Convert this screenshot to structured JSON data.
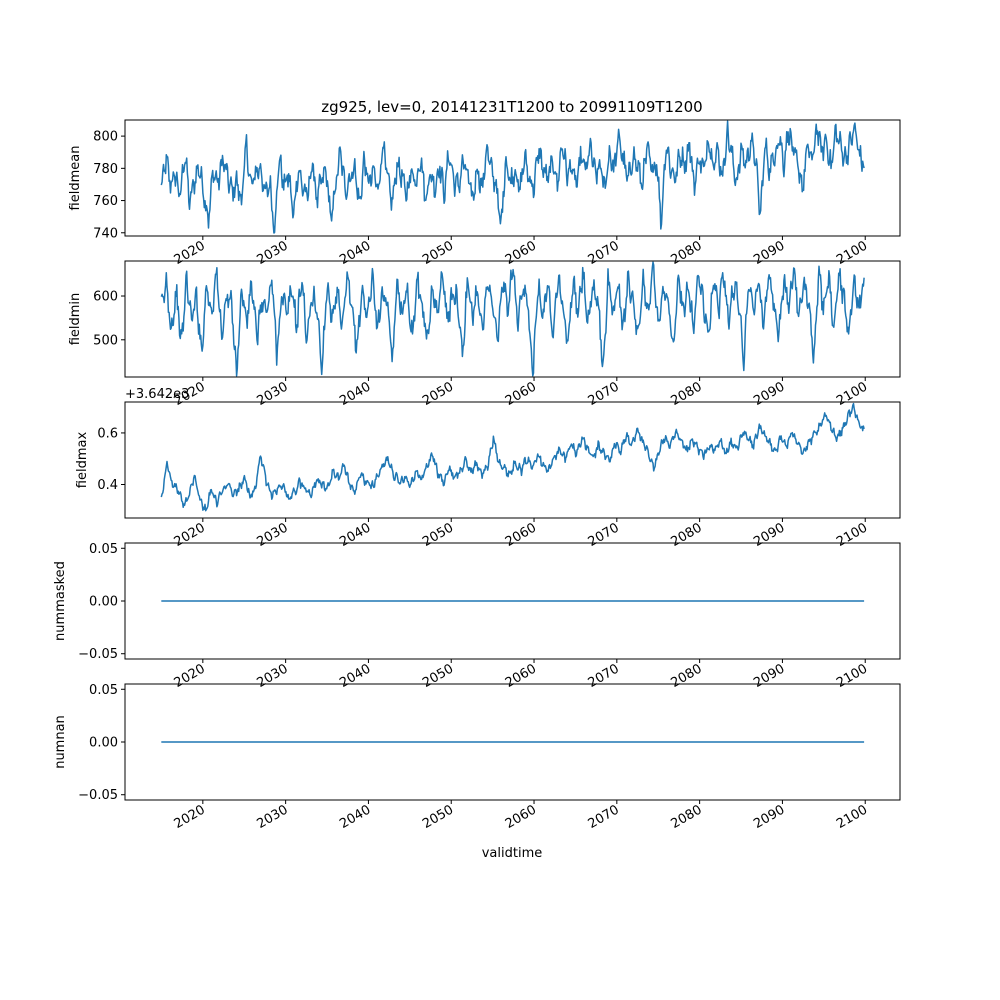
{
  "chart_data": {
    "type": "line",
    "title": "zg925, lev=0, 20141231T1200 to 20991109T1200",
    "xlabel": "validtime",
    "x_range": [
      2014.99,
      2099.86
    ],
    "xlim": [
      2010.6,
      2104.2
    ],
    "xticks": [
      2020,
      2030,
      2040,
      2050,
      2060,
      2070,
      2080,
      2090,
      2100
    ],
    "xtick_labels": [
      "2020",
      "2030",
      "2040",
      "2050",
      "2060",
      "2070",
      "2080",
      "2090",
      "2100"
    ],
    "color": "#1f77b4",
    "panels": [
      {
        "name": "fieldmean",
        "ylabel": "fieldmean",
        "ylim": [
          738,
          810
        ],
        "yticks": [
          740,
          760,
          780,
          800
        ],
        "ytick_labels": [
          "740",
          "760",
          "780",
          "800"
        ],
        "offset_text": "",
        "noise": "high",
        "values": [
          768,
          785,
          770,
          776,
          762,
          790,
          758,
          772,
          781,
          765,
          748,
          779,
          770,
          786,
          775,
          765,
          772,
          759,
          795,
          768,
          777,
          781,
          763,
          771,
          742,
          787,
          769,
          776,
          750,
          780,
          768,
          762,
          784,
          760,
          773,
          778,
          746,
          771,
          790,
          767,
          774,
          781,
          756,
          785,
          770,
          778,
          766,
          796,
          772,
          758,
          783,
          775,
          763,
          779,
          771,
          788,
          760,
          777,
          768,
          782,
          764,
          790,
          772,
          769,
          784,
          775,
          760,
          781,
          766,
          793,
          778,
          770,
          742,
          786,
          771,
          780,
          765,
          787,
          774,
          768,
          792,
          779,
          773,
          785,
          770,
          796,
          776,
          781,
          769,
          788,
          778,
          794,
          775,
          782,
          767,
          790,
          779,
          800,
          784,
          772,
          788,
          781,
          770,
          793,
          778,
          785,
          746,
          796,
          780,
          774,
          789,
          783,
          795,
          769,
          787,
          778,
          799,
          784,
          790,
          775,
          803,
          787,
          771,
          792,
          782,
          797,
          786,
          750,
          795,
          779,
          788,
          800,
          783,
          804,
          790,
          781,
          768,
          794,
          784,
          806,
          790,
          798,
          780,
          803,
          794,
          786,
          795,
          805,
          789,
          781
        ]
      },
      {
        "name": "fieldmin",
        "ylabel": "fieldmin",
        "ylim": [
          415,
          680
        ],
        "yticks": [
          500,
          600
        ],
        "ytick_labels": [
          "500",
          "600"
        ],
        "offset_text": "",
        "noise": "high",
        "values": [
          570,
          633,
          520,
          610,
          488,
          640,
          545,
          600,
          470,
          625,
          560,
          655,
          510,
          598,
          580,
          425,
          615,
          540,
          630,
          500,
          590,
          560,
          640,
          470,
          605,
          555,
          620,
          530,
          645,
          495,
          600,
          575,
          430,
          630,
          550,
          610,
          520,
          640,
          565,
          480,
          620,
          545,
          650,
          530,
          600,
          585,
          445,
          635,
          560,
          615,
          510,
          640,
          575,
          495,
          625,
          550,
          660,
          540,
          605,
          590,
          470,
          630,
          555,
          620,
          515,
          645,
          570,
          500,
          640,
          560,
          675,
          530,
          610,
          585,
          420,
          635,
          555,
          625,
          520,
          648,
          575,
          490,
          630,
          560,
          655,
          535,
          612,
          592,
          430,
          638,
          558,
          628,
          518,
          650,
          578,
          498,
          635,
          565,
          665,
          540,
          615,
          595,
          470,
          640,
          562,
          630,
          525,
          652,
          580,
          505,
          638,
          570,
          660,
          545,
          618,
          598,
          445,
          642,
          565,
          632,
          528,
          655,
          585,
          510,
          640,
          572,
          668,
          548,
          620,
          600,
          455,
          645,
          568,
          635,
          532,
          650,
          588,
          515,
          642,
          575,
          630
        ]
      },
      {
        "name": "fieldmax",
        "ylabel": "fieldmax",
        "ylim": [
          0.27,
          0.72
        ],
        "yticks": [
          0.4,
          0.6
        ],
        "ytick_labels": [
          "0.4",
          "0.6"
        ],
        "offset_text": "+3.642e3",
        "noise": "low",
        "values": [
          0.35,
          0.48,
          0.4,
          0.38,
          0.32,
          0.36,
          0.44,
          0.34,
          0.3,
          0.38,
          0.33,
          0.37,
          0.4,
          0.36,
          0.38,
          0.43,
          0.35,
          0.39,
          0.51,
          0.41,
          0.36,
          0.38,
          0.4,
          0.34,
          0.37,
          0.41,
          0.39,
          0.36,
          0.42,
          0.4,
          0.38,
          0.45,
          0.42,
          0.48,
          0.4,
          0.37,
          0.44,
          0.41,
          0.39,
          0.43,
          0.47,
          0.5,
          0.44,
          0.41,
          0.43,
          0.4,
          0.45,
          0.42,
          0.47,
          0.52,
          0.44,
          0.41,
          0.46,
          0.43,
          0.45,
          0.49,
          0.45,
          0.48,
          0.44,
          0.47,
          0.58,
          0.49,
          0.46,
          0.44,
          0.49,
          0.45,
          0.5,
          0.47,
          0.52,
          0.48,
          0.45,
          0.51,
          0.53,
          0.5,
          0.56,
          0.52,
          0.58,
          0.54,
          0.5,
          0.55,
          0.52,
          0.49,
          0.56,
          0.53,
          0.59,
          0.55,
          0.62,
          0.56,
          0.52,
          0.46,
          0.54,
          0.58,
          0.55,
          0.6,
          0.56,
          0.53,
          0.57,
          0.54,
          0.51,
          0.55,
          0.53,
          0.57,
          0.52,
          0.56,
          0.54,
          0.6,
          0.58,
          0.55,
          0.62,
          0.59,
          0.56,
          0.53,
          0.58,
          0.55,
          0.6,
          0.57,
          0.52,
          0.56,
          0.59,
          0.62,
          0.67,
          0.63,
          0.58,
          0.61,
          0.66,
          0.7,
          0.65,
          0.6
        ]
      },
      {
        "name": "nummasked",
        "ylabel": "nummasked",
        "ylim": [
          -0.055,
          0.055
        ],
        "yticks": [
          -0.05,
          0.0,
          0.05
        ],
        "ytick_labels": [
          "−0.05",
          "0.00",
          "0.05"
        ],
        "offset_text": "",
        "noise": "none",
        "values": [
          0,
          0
        ]
      },
      {
        "name": "numnan",
        "ylabel": "numnan",
        "ylim": [
          -0.055,
          0.055
        ],
        "yticks": [
          -0.05,
          0.0,
          0.05
        ],
        "ytick_labels": [
          "−0.05",
          "0.00",
          "0.05"
        ],
        "offset_text": "",
        "noise": "none",
        "values": [
          0,
          0
        ]
      }
    ]
  }
}
